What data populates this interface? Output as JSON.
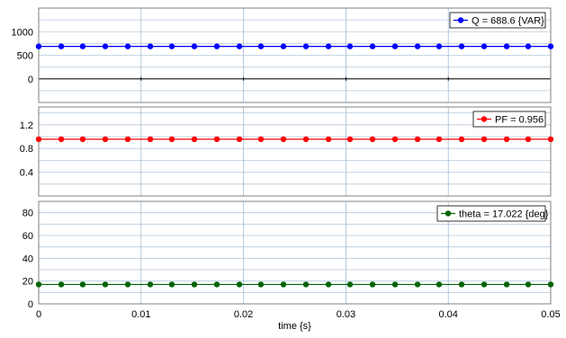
{
  "chart_data": {
    "type": "line",
    "xlabel": "time {s}",
    "xlim": [
      0,
      0.05
    ],
    "x_ticks": [
      "0",
      "0.01",
      "0.02",
      "0.03",
      "0.04",
      "0.05"
    ],
    "grid": true,
    "legend_position": "top-right",
    "panels": [
      {
        "series": [
          {
            "name": "Q = 688.6 {VAR}",
            "value": 688.6,
            "color": "#0000ff"
          }
        ],
        "ylim": [
          -500,
          1500
        ],
        "y_ticks": [
          {
            "value": 0,
            "label": "0"
          },
          {
            "value": 500,
            "label": "500"
          },
          {
            "value": 1000,
            "label": "1000"
          }
        ],
        "zero_line": true
      },
      {
        "series": [
          {
            "name": "PF = 0.956",
            "value": 0.956,
            "color": "#ff0000"
          }
        ],
        "ylim": [
          0.0,
          1.5
        ],
        "y_ticks": [
          {
            "value": 0.4,
            "label": "0.4"
          },
          {
            "value": 0.8,
            "label": "0.8"
          },
          {
            "value": 1.2,
            "label": "1.2"
          }
        ],
        "zero_line": false
      },
      {
        "series": [
          {
            "name": "theta = 17.022 {deg}",
            "value": 17.022,
            "color": "#006400"
          }
        ],
        "ylim": [
          0,
          90
        ],
        "y_ticks": [
          {
            "value": 0,
            "label": "0"
          },
          {
            "value": 20,
            "label": "20"
          },
          {
            "value": 40,
            "label": "40"
          },
          {
            "value": 60,
            "label": "60"
          },
          {
            "value": 80,
            "label": "80"
          }
        ],
        "zero_line": false
      }
    ],
    "sample_x": [
      0,
      0.0022,
      0.0043,
      0.0065,
      0.0087,
      0.0109,
      0.013,
      0.0152,
      0.0174,
      0.0196,
      0.0217,
      0.0239,
      0.0261,
      0.0283,
      0.0304,
      0.0326,
      0.0348,
      0.037,
      0.0391,
      0.0413,
      0.0435,
      0.0457,
      0.0478,
      0.05
    ]
  }
}
